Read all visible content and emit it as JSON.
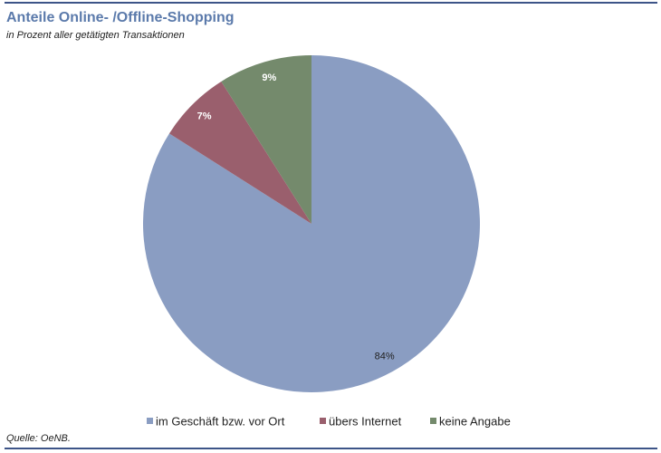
{
  "chart_data": {
    "type": "pie",
    "title": "Anteile Online- /Offline-Shopping",
    "subtitle": "in Prozent aller getätigten Transaktionen",
    "source": "Quelle: OeNB.",
    "categories": [
      "im Geschäft bzw. vor Ort",
      "übers Internet",
      "keine Angabe"
    ],
    "values": [
      84,
      7,
      9
    ],
    "value_labels": [
      "84%",
      "7%",
      "9%"
    ],
    "colors": [
      "#8a9dc2",
      "#9a5f6d",
      "#748a6c"
    ],
    "legend": "bottom"
  }
}
